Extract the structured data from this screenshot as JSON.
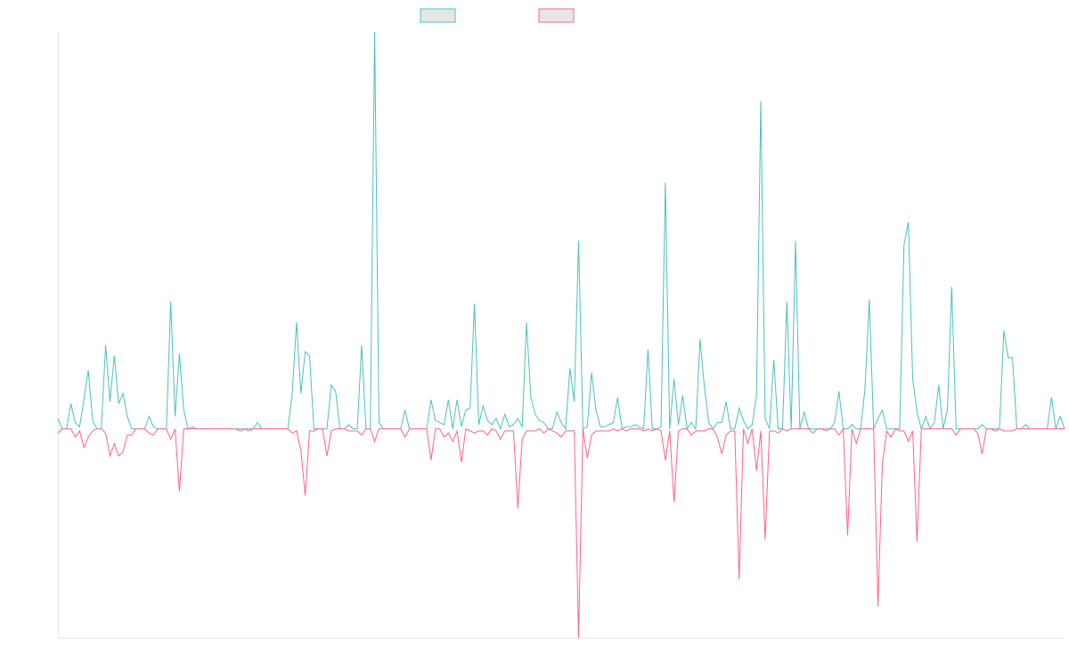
{
  "chart_data": {
    "type": "line",
    "title": "",
    "xlabel": "",
    "ylabel": "",
    "grid": false,
    "legend_position": "top-center",
    "ylim": [
      -100,
      190
    ],
    "legend": [
      {
        "swatch_color": "#4bc0c0",
        "swatch_fill": "#e6e6e6",
        "label": ""
      },
      {
        "swatch_color": "#ff6384",
        "swatch_fill": "#e6e6e6",
        "label": ""
      }
    ],
    "series": [
      {
        "color": "#4bc0c0",
        "values": [
          5,
          0,
          0,
          12,
          3,
          1,
          14,
          28,
          4,
          0,
          0,
          40,
          13,
          35,
          12,
          17,
          6,
          0,
          0,
          0,
          0,
          6,
          1,
          0,
          0,
          0,
          61,
          6,
          36,
          9,
          0,
          1,
          0,
          0,
          0,
          0,
          0,
          0,
          0,
          0,
          0,
          0,
          0,
          0,
          0,
          0,
          3,
          0,
          0,
          0,
          0,
          0,
          0,
          0,
          17,
          51,
          17,
          37,
          35,
          0,
          0,
          0,
          0,
          21,
          18,
          0,
          0,
          2,
          0,
          0,
          40,
          0,
          0,
          190,
          3,
          0,
          0,
          0,
          0,
          0,
          9,
          0,
          0,
          0,
          0,
          0,
          14,
          4,
          3,
          2,
          14,
          0,
          14,
          1,
          9,
          10,
          60,
          2,
          11,
          4,
          2,
          5,
          0,
          7,
          1,
          2,
          5,
          1,
          51,
          15,
          7,
          4,
          3,
          0,
          0,
          8,
          3,
          0,
          29,
          13,
          90,
          0,
          1,
          27,
          9,
          1,
          1,
          2,
          3,
          15,
          0,
          1,
          1,
          2,
          1,
          0,
          38,
          0,
          0,
          1,
          118,
          0,
          24,
          2,
          16,
          0,
          3,
          0,
          43,
          20,
          3,
          0,
          3,
          3,
          13,
          0,
          0,
          10,
          4,
          0,
          2,
          16,
          157,
          5,
          0,
          33,
          0,
          0,
          61,
          0,
          90,
          0,
          8,
          0,
          0,
          0,
          0,
          0,
          0,
          3,
          18,
          0,
          0,
          2,
          0,
          0,
          19,
          62,
          0,
          5,
          9,
          0,
          0,
          0,
          0,
          88,
          99,
          24,
          8,
          0,
          6,
          0,
          3,
          21,
          0,
          9,
          68,
          0,
          0,
          0,
          0,
          0,
          0,
          2,
          0,
          0,
          0,
          0,
          47,
          34,
          34,
          0,
          0,
          2,
          0,
          0,
          0,
          0,
          0,
          15,
          0,
          6,
          0
        ]
      },
      {
        "color": "#ff6384",
        "values": [
          -2,
          0,
          0,
          0,
          -4,
          -1,
          -9,
          -4,
          -1,
          0,
          0,
          -2,
          -13,
          -7,
          -13,
          -11,
          -3,
          -3,
          0,
          0,
          0,
          -2,
          -3,
          0,
          0,
          0,
          -5,
          0,
          -30,
          0,
          0,
          0,
          0,
          0,
          0,
          0,
          0,
          0,
          0,
          0,
          0,
          0,
          -1,
          0,
          -1,
          0,
          0,
          0,
          0,
          0,
          0,
          0,
          0,
          0,
          -2,
          -1,
          -10,
          -32,
          -1,
          -1,
          0,
          0,
          -13,
          -1,
          0,
          0,
          0,
          -1,
          -1,
          -1,
          -3,
          0,
          0,
          -6,
          0,
          0,
          0,
          0,
          0,
          0,
          -4,
          0,
          0,
          0,
          0,
          0,
          -15,
          0,
          0,
          -4,
          -2,
          -6,
          -1,
          -16,
          0,
          -1,
          -2,
          -1,
          -1,
          -3,
          0,
          -1,
          -5,
          -1,
          -1,
          -1,
          -38,
          -5,
          -1,
          -1,
          -1,
          0,
          -2,
          0,
          -1,
          -2,
          -4,
          -1,
          -1,
          -1,
          -100,
          0,
          -14,
          -3,
          -1,
          -1,
          -1,
          -1,
          0,
          -1,
          0,
          -1,
          0,
          0,
          0,
          -1,
          0,
          -1,
          0,
          -1,
          -15,
          -1,
          -35,
          -1,
          0,
          0,
          -3,
          -1,
          -1,
          -1,
          0,
          0,
          -4,
          -12,
          -3,
          -1,
          -1,
          -72,
          0,
          -7,
          0,
          -20,
          -1,
          -53,
          -1,
          -1,
          -2,
          0,
          -1,
          0,
          0,
          0,
          0,
          0,
          -2,
          0,
          0,
          -1,
          0,
          0,
          -3,
          0,
          -51,
          0,
          -7,
          0,
          0,
          0,
          0,
          -85,
          -17,
          -1,
          -4,
          0,
          -1,
          -1,
          -6,
          -1,
          -54,
          0,
          0,
          0,
          0,
          0,
          0,
          0,
          0,
          -3,
          0,
          0,
          0,
          0,
          -2,
          -12,
          0,
          0,
          -1,
          0,
          -1,
          -1,
          -1,
          0,
          0,
          0,
          0,
          0,
          0,
          0,
          0,
          0,
          0,
          0,
          0
        ]
      }
    ]
  }
}
